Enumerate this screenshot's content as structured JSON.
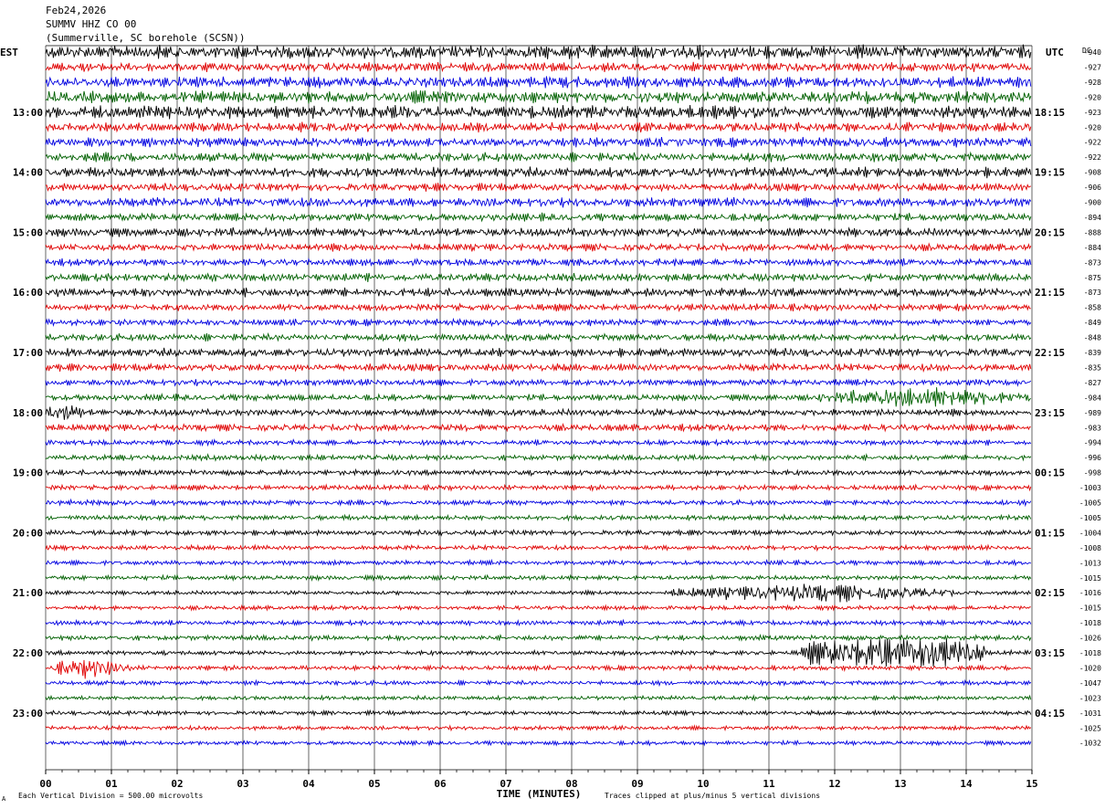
{
  "header": {
    "date": "Feb24,2026",
    "station": "SUMMV HHZ CO 00",
    "location": "(Summerville, SC borehole (SCSN))",
    "left_zone": "EST",
    "right_zone": "UTC",
    "dc_label": "DC"
  },
  "footer": {
    "corner_mark": "A",
    "scale_note": "Each Vertical Division =  500.00 microvolts",
    "clip_note": "Traces clipped at plus/minus 5 vertical divisions"
  },
  "chart_data": {
    "type": "line",
    "title": "",
    "xlabel": "TIME (MINUTES)",
    "xlim": [
      0,
      15
    ],
    "x_ticks": [
      "00",
      "01",
      "02",
      "03",
      "04",
      "05",
      "06",
      "07",
      "08",
      "09",
      "10",
      "11",
      "12",
      "13",
      "14",
      "15"
    ],
    "rows_per_hour": 4,
    "trace_colors": [
      "#000000",
      "#e00000",
      "#0000e0",
      "#006000"
    ],
    "left_hour_labels": [
      "13:00",
      "14:00",
      "15:00",
      "16:00",
      "17:00",
      "18:00",
      "19:00",
      "20:00",
      "21:00",
      "22:00",
      "23:00"
    ],
    "right_hour_labels": [
      "18:15",
      "19:15",
      "20:15",
      "21:15",
      "22:15",
      "23:15",
      "00:15",
      "01:15",
      "02:15",
      "03:15",
      "04:15"
    ],
    "dc_offsets": [
      "-940",
      "-927",
      "-928",
      "-920",
      "-923",
      "-920",
      "-922",
      "-922",
      "-908",
      "-906",
      "-900",
      "-894",
      "-888",
      "-884",
      "-873",
      "-875",
      "-873",
      "-858",
      "-849",
      "-848",
      "-839",
      "-835",
      "-827",
      "-984",
      "-989",
      "-983",
      "-994",
      "-996",
      "-998",
      "-1003",
      "-1005",
      "-1005",
      "-1004",
      "-1008",
      "-1013",
      "-1015",
      "-1016",
      "-1015",
      "-1018",
      "-1026",
      "-1018",
      "-1020",
      "-1047",
      "-1023",
      "-1031",
      "-1025",
      "-1032"
    ],
    "row_amplitudes": [
      1.5,
      1.0,
      1.2,
      1.3,
      1.4,
      1.0,
      1.0,
      1.0,
      1.1,
      0.85,
      1.0,
      0.85,
      0.95,
      0.8,
      0.75,
      0.85,
      0.95,
      0.75,
      0.7,
      0.8,
      0.9,
      0.8,
      0.7,
      0.7,
      0.75,
      0.75,
      0.55,
      0.6,
      0.6,
      0.55,
      0.55,
      0.55,
      0.55,
      0.5,
      0.5,
      0.5,
      0.45,
      0.45,
      0.5,
      0.55,
      0.5,
      0.5,
      0.5,
      0.45,
      0.45,
      0.45,
      0.45
    ],
    "events": [
      {
        "row": 23,
        "x_start": 11.7,
        "x_end": 15,
        "amplitude": 0.9
      },
      {
        "row": 24,
        "x_start": 0.0,
        "x_end": 0.6,
        "amplitude": 0.9
      },
      {
        "row": 36,
        "x_start": 9.5,
        "x_end": 13.8,
        "amplitude": 0.8
      },
      {
        "row": 40,
        "x_start": 11.5,
        "x_end": 14.3,
        "amplitude": 1.8
      },
      {
        "row": 41,
        "x_start": 0.1,
        "x_end": 1.3,
        "amplitude": 0.9
      }
    ]
  }
}
